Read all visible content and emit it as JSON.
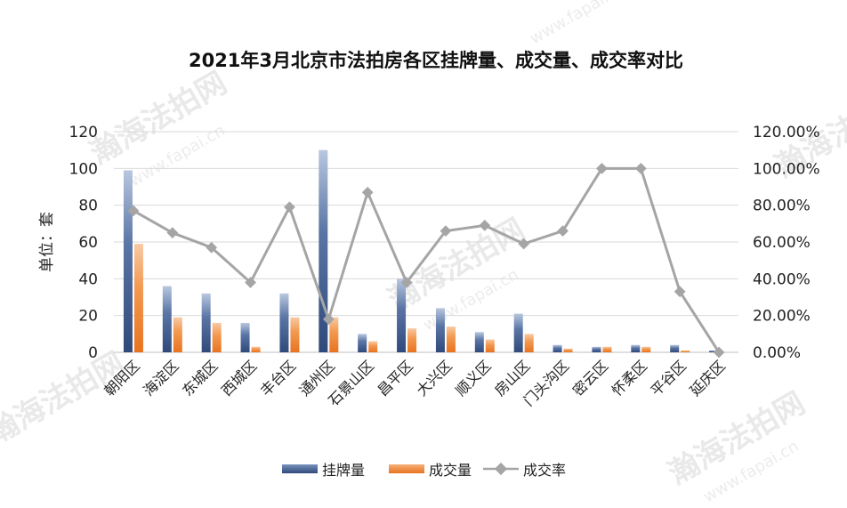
{
  "chart_data": {
    "type": "bar",
    "title": "2021年3月北京市法拍房各区挂牌量、成交量、成交率对比",
    "ylabel": "单位：套",
    "ylim": [
      0,
      120
    ],
    "y_ticks": [
      "0",
      "20",
      "40",
      "60",
      "80",
      "100",
      "120"
    ],
    "y2lim": [
      0,
      1.2
    ],
    "y2_ticks": [
      "0.00%",
      "20.00%",
      "40.00%",
      "60.00%",
      "80.00%",
      "100.00%",
      "120.00%"
    ],
    "grid": true,
    "legend_position": "bottom",
    "categories": [
      "朝阳区",
      "海淀区",
      "东城区",
      "西城区",
      "丰台区",
      "通州区",
      "石景山区",
      "昌平区",
      "大兴区",
      "顺义区",
      "房山区",
      "门头沟区",
      "密云区",
      "怀柔区",
      "平谷区",
      "延庆区"
    ],
    "series": [
      {
        "name": "挂牌量",
        "type": "bar",
        "axis": "left",
        "color": "#44546A",
        "values": [
          99,
          36,
          32,
          16,
          32,
          110,
          10,
          40,
          24,
          11,
          21,
          4,
          3,
          4,
          4,
          1
        ]
      },
      {
        "name": "成交量",
        "type": "bar",
        "axis": "left",
        "color": "#ED7D31",
        "values": [
          59,
          19,
          16,
          3,
          19,
          19,
          6,
          13,
          14,
          7,
          10,
          2,
          3,
          3,
          1,
          0
        ]
      },
      {
        "name": "成交率",
        "type": "line",
        "axis": "right",
        "color": "#A5A5A5",
        "values": [
          0.77,
          0.65,
          0.57,
          0.38,
          0.79,
          0.18,
          0.87,
          0.38,
          0.66,
          0.69,
          0.59,
          0.66,
          1.0,
          1.0,
          0.33,
          0.0
        ]
      }
    ]
  },
  "watermark": {
    "brand_text": "瀚海法拍网",
    "brand_url": "www.fapai.cn"
  }
}
